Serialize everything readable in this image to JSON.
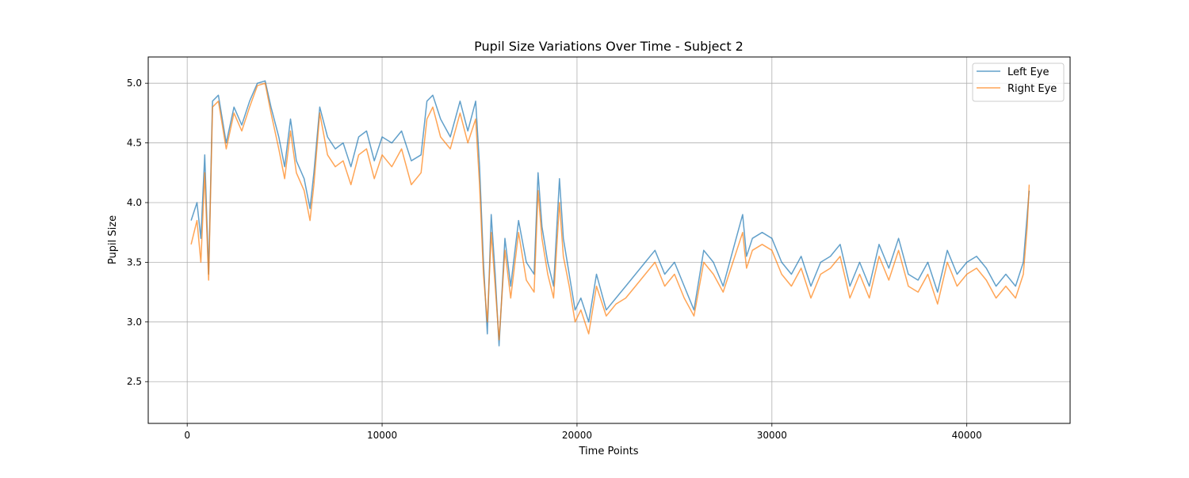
{
  "chart_data": {
    "type": "line",
    "title": "Pupil Size Variations Over Time - Subject 2",
    "xlabel": "Time Points",
    "ylabel": "Pupil Size",
    "xlim": [
      -2000,
      45300
    ],
    "ylim": [
      2.15,
      5.22
    ],
    "x_ticks": [
      0,
      10000,
      20000,
      30000,
      40000
    ],
    "x_tick_labels": [
      "0",
      "10000",
      "20000",
      "30000",
      "40000"
    ],
    "y_ticks": [
      2.5,
      3.0,
      3.5,
      4.0,
      4.5,
      5.0
    ],
    "y_tick_labels": [
      "2.5",
      "3.0",
      "3.5",
      "4.0",
      "4.5",
      "5.0"
    ],
    "grid": true,
    "legend_position": "top-right",
    "x": [
      200,
      500,
      700,
      900,
      1100,
      1300,
      1600,
      2000,
      2400,
      2800,
      3200,
      3600,
      4000,
      4300,
      4700,
      5000,
      5300,
      5600,
      6000,
      6300,
      6500,
      6800,
      7200,
      7600,
      8000,
      8400,
      8800,
      9200,
      9600,
      10000,
      10500,
      11000,
      11500,
      12000,
      12300,
      12600,
      13000,
      13500,
      14000,
      14400,
      14800,
      15000,
      15200,
      15400,
      15600,
      15800,
      16000,
      16300,
      16600,
      17000,
      17400,
      17800,
      18000,
      18200,
      18500,
      18800,
      19100,
      19300,
      19600,
      19900,
      20200,
      20600,
      21000,
      21500,
      22000,
      22500,
      23000,
      23500,
      24000,
      24500,
      25000,
      25500,
      26000,
      26500,
      27000,
      27500,
      28000,
      28500,
      28700,
      29000,
      29500,
      30000,
      30500,
      31000,
      31500,
      32000,
      32500,
      33000,
      33500,
      34000,
      34500,
      35000,
      35500,
      36000,
      36500,
      37000,
      37500,
      38000,
      38500,
      39000,
      39500,
      40000,
      40500,
      41000,
      41500,
      42000,
      42500,
      42900,
      43100,
      43200
    ],
    "series": [
      {
        "name": "Left Eye",
        "color": "#1f77b4",
        "values": [
          3.85,
          4.0,
          3.7,
          4.4,
          3.4,
          4.85,
          4.9,
          4.5,
          4.8,
          4.65,
          4.85,
          5.0,
          5.02,
          4.8,
          4.55,
          4.3,
          4.7,
          4.35,
          4.2,
          3.95,
          4.25,
          4.8,
          4.55,
          4.45,
          4.5,
          4.3,
          4.55,
          4.6,
          4.35,
          4.55,
          4.5,
          4.6,
          4.35,
          4.4,
          4.85,
          4.9,
          4.7,
          4.55,
          4.85,
          4.6,
          4.85,
          4.3,
          3.5,
          2.9,
          3.9,
          3.4,
          2.8,
          3.7,
          3.3,
          3.85,
          3.5,
          3.4,
          4.25,
          3.8,
          3.5,
          3.3,
          4.2,
          3.7,
          3.4,
          3.1,
          3.2,
          3.0,
          3.4,
          3.1,
          3.2,
          3.3,
          3.4,
          3.5,
          3.6,
          3.4,
          3.5,
          3.3,
          3.1,
          3.6,
          3.5,
          3.3,
          3.6,
          3.9,
          3.55,
          3.7,
          3.75,
          3.7,
          3.5,
          3.4,
          3.55,
          3.3,
          3.5,
          3.55,
          3.65,
          3.3,
          3.5,
          3.3,
          3.65,
          3.45,
          3.7,
          3.4,
          3.35,
          3.5,
          3.25,
          3.6,
          3.4,
          3.5,
          3.55,
          3.45,
          3.3,
          3.4,
          3.3,
          3.5,
          3.9,
          4.1
        ]
      },
      {
        "name": "Right Eye",
        "color": "#ff7f0e",
        "values": [
          3.65,
          3.85,
          3.5,
          4.25,
          3.35,
          4.8,
          4.85,
          4.45,
          4.75,
          4.6,
          4.8,
          4.98,
          5.0,
          4.75,
          4.45,
          4.2,
          4.6,
          4.25,
          4.1,
          3.85,
          4.15,
          4.75,
          4.4,
          4.3,
          4.35,
          4.15,
          4.4,
          4.45,
          4.2,
          4.4,
          4.3,
          4.45,
          4.15,
          4.25,
          4.7,
          4.8,
          4.55,
          4.45,
          4.75,
          4.5,
          4.7,
          4.15,
          3.4,
          3.0,
          3.75,
          3.3,
          2.85,
          3.6,
          3.2,
          3.75,
          3.35,
          3.25,
          4.1,
          3.7,
          3.4,
          3.2,
          4.0,
          3.55,
          3.3,
          3.0,
          3.1,
          2.9,
          3.3,
          3.05,
          3.15,
          3.2,
          3.3,
          3.4,
          3.5,
          3.3,
          3.4,
          3.2,
          3.05,
          3.5,
          3.4,
          3.25,
          3.5,
          3.75,
          3.45,
          3.6,
          3.65,
          3.6,
          3.4,
          3.3,
          3.45,
          3.2,
          3.4,
          3.45,
          3.55,
          3.2,
          3.4,
          3.2,
          3.55,
          3.35,
          3.6,
          3.3,
          3.25,
          3.4,
          3.15,
          3.5,
          3.3,
          3.4,
          3.45,
          3.35,
          3.2,
          3.3,
          3.2,
          3.4,
          3.8,
          4.15
        ]
      }
    ],
    "series_opacity": 0.7
  }
}
